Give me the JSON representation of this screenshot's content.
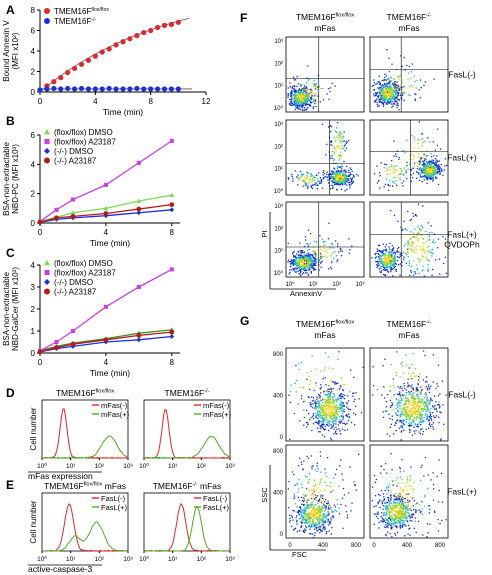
{
  "panels": {
    "A": {
      "letter": "A",
      "xlabel": "Time (min)",
      "ylabel": [
        "Bound Annexin V",
        "(MFI x10²)"
      ],
      "xticks": [
        "0",
        "4",
        "8",
        "12"
      ],
      "yticks": [
        "0",
        "2",
        "4",
        "6",
        "8"
      ],
      "legend": [
        {
          "main": "TMEM16F",
          "sup": "flox/flox",
          "color": "#e0262c",
          "marker": "circle"
        },
        {
          "main": "TMEM16F",
          "sup": "-/-",
          "color": "#1d2fd8",
          "marker": "circle"
        }
      ]
    },
    "B": {
      "letter": "B",
      "xlabel": "Time (min)",
      "ylabel": [
        "BSA-non-extractable",
        "NBD-PC (MFI x10³)"
      ],
      "xticks": [
        "0",
        "4",
        "8"
      ],
      "yticks": [
        "0",
        "2",
        "4",
        "6"
      ],
      "legend": [
        {
          "main": "(flox/flox) DMSO",
          "color": "#7ed957",
          "marker": "triangle"
        },
        {
          "main": "(flox/flox) A23187",
          "color": "#c640e6",
          "marker": "square"
        },
        {
          "main": "(-/-) DMSO",
          "color": "#1d2fd8",
          "marker": "diamond"
        },
        {
          "main": "(-/-) A23187",
          "color": "#b31b1b",
          "marker": "circle"
        }
      ]
    },
    "C": {
      "letter": "C",
      "xlabel": "Time (min)",
      "ylabel": [
        "BSA-non-extractable",
        "NBD-GalCer (MFI x10³)"
      ],
      "xticks": [
        "0",
        "4",
        "8"
      ],
      "yticks": [
        "0",
        "1",
        "2",
        "3",
        "4"
      ],
      "legend": [
        {
          "main": "(flox/flox) DMSO",
          "color": "#7ed957",
          "marker": "triangle"
        },
        {
          "main": "(flox/flox) A23187",
          "color": "#c640e6",
          "marker": "square"
        },
        {
          "main": "(-/-) DMSO",
          "color": "#1d2fd8",
          "marker": "diamond"
        },
        {
          "main": "(-/-) A23187",
          "color": "#b31b1b",
          "marker": "circle"
        }
      ]
    },
    "D": {
      "letter": "D",
      "ylabel": "Cell number",
      "xlabel": "mFas expression",
      "xticks": [
        "10⁰",
        "10¹",
        "10²",
        "10³"
      ],
      "titles": [
        {
          "main": "TMEM16F",
          "sup": "flox/flox"
        },
        {
          "main": "TMEM16F",
          "sup": "-/-"
        }
      ],
      "legend": [
        {
          "label": "mFas(-)",
          "color": "#e0262c"
        },
        {
          "label": "mFas(+)",
          "color": "#4caf25"
        }
      ]
    },
    "E": {
      "letter": "E",
      "ylabel": "Cell number",
      "xlabel": "active-caspase-3",
      "xticks": [
        "10⁰",
        "10¹",
        "10²",
        "10³"
      ],
      "titles": [
        {
          "main": "TMEM16F",
          "sup": "flox/flox",
          "tail": " mFas"
        },
        {
          "main": "TMEM16F",
          "sup": "-/-",
          "tail": " mFas"
        }
      ],
      "legend": [
        {
          "label": "FasL(-)",
          "color": "#e0262c"
        },
        {
          "label": "FasL(+)",
          "color": "#4caf25"
        }
      ]
    },
    "F": {
      "letter": "F",
      "ylabel": "PI",
      "xlabel": "AnnexinV",
      "xticks": [
        "10⁰",
        "10¹",
        "10²",
        "10³"
      ],
      "yticks": [
        "10⁰",
        "10¹",
        "10²",
        "10³"
      ],
      "col_titles": [
        {
          "main": "TMEM16F",
          "sup": "flox/flox",
          "line2": "mFas"
        },
        {
          "main": "TMEM16F",
          "sup": "-/-",
          "line2": "mFas"
        }
      ],
      "row_labels": [
        [
          "FasL(-)"
        ],
        [
          "FasL(+)"
        ],
        [
          "FasL(+)",
          "QVDOPh"
        ]
      ]
    },
    "G": {
      "letter": "G",
      "ylabel": "SSC",
      "xlabel": "FSC",
      "xticks": [
        "0",
        "400",
        "800"
      ],
      "yticks": [
        "0",
        "400",
        "800"
      ],
      "col_titles": [
        {
          "main": "TMEM16F",
          "sup": "flox/flox",
          "line2": "mFas"
        },
        {
          "main": "TMEM16F",
          "sup": "-/-",
          "line2": "mFas"
        }
      ],
      "row_labels": [
        [
          "FasL(-)"
        ],
        [
          "FasL(+)"
        ]
      ]
    }
  },
  "chart_data": [
    {
      "panel": "A",
      "type": "scatter",
      "x": [
        0,
        0.5,
        1,
        1.5,
        2,
        2.5,
        3,
        3.5,
        4,
        4.5,
        5,
        5.5,
        6,
        6.5,
        7,
        7.5,
        8,
        8.5,
        9,
        9.5,
        10
      ],
      "xlim": [
        0,
        12
      ],
      "ylim": [
        0,
        8
      ],
      "xlabel": "Time (min)",
      "ylabel": "Bound Annexin V (MFI x10²)",
      "series": [
        {
          "name": "TMEM16F flox/flox",
          "color": "#e0262c",
          "values": [
            0.2,
            0.6,
            1.0,
            1.4,
            1.9,
            2.3,
            2.7,
            3.1,
            3.5,
            3.9,
            4.2,
            4.6,
            4.9,
            5.2,
            5.5,
            5.8,
            6.0,
            6.3,
            6.5,
            6.6,
            6.8
          ]
        },
        {
          "name": "TMEM16F -/-",
          "color": "#1d2fd8",
          "values": [
            0.2,
            0.3,
            0.35,
            0.3,
            0.35,
            0.3,
            0.35,
            0.3,
            0.3,
            0.3,
            0.35,
            0.3,
            0.3,
            0.3,
            0.35,
            0.3,
            0.3,
            0.3,
            0.3,
            0.3,
            0.3
          ]
        }
      ],
      "fit_line": {
        "x": [
          0,
          10.8
        ],
        "y": [
          0,
          7.2
        ]
      }
    },
    {
      "panel": "B",
      "type": "line",
      "x": [
        0,
        1,
        2,
        4,
        6,
        8
      ],
      "xlim": [
        0,
        8.5
      ],
      "ylim": [
        0,
        6
      ],
      "xlabel": "Time (min)",
      "ylabel": "BSA-non-extractable NBD-PC (MFI x10³)",
      "series": [
        {
          "name": "(flox/flox) DMSO",
          "color": "#7ed957",
          "values": [
            0.1,
            0.4,
            0.7,
            1.0,
            1.5,
            1.9
          ]
        },
        {
          "name": "(flox/flox) A23187",
          "color": "#c640e6",
          "values": [
            0.1,
            0.9,
            1.6,
            2.6,
            4.1,
            5.6
          ]
        },
        {
          "name": "(-/-) DMSO",
          "color": "#1d2fd8",
          "values": [
            0.05,
            0.25,
            0.35,
            0.5,
            0.7,
            0.9
          ]
        },
        {
          "name": "(-/-) A23187",
          "color": "#b31b1b",
          "values": [
            0.05,
            0.35,
            0.45,
            0.65,
            0.95,
            1.25
          ]
        }
      ]
    },
    {
      "panel": "C",
      "type": "line",
      "x": [
        0,
        1,
        2,
        4,
        6,
        8
      ],
      "xlim": [
        0,
        8.5
      ],
      "ylim": [
        0,
        4
      ],
      "xlabel": "Time (min)",
      "ylabel": "BSA-non-extractable NBD-GalCer (MFI x10³)",
      "series": [
        {
          "name": "(flox/flox) DMSO",
          "color": "#3f8f22",
          "values": [
            0.1,
            0.3,
            0.45,
            0.65,
            0.9,
            1.05
          ]
        },
        {
          "name": "(flox/flox) A23187",
          "color": "#c640e6",
          "values": [
            0.1,
            0.5,
            1.0,
            2.1,
            3.0,
            3.8
          ]
        },
        {
          "name": "(-/-) DMSO",
          "color": "#1d2fd8",
          "values": [
            0.05,
            0.2,
            0.3,
            0.5,
            0.6,
            0.75
          ]
        },
        {
          "name": "(-/-) A23187",
          "color": "#b31b1b",
          "values": [
            0.05,
            0.25,
            0.4,
            0.6,
            0.8,
            0.95
          ]
        }
      ]
    }
  ]
}
